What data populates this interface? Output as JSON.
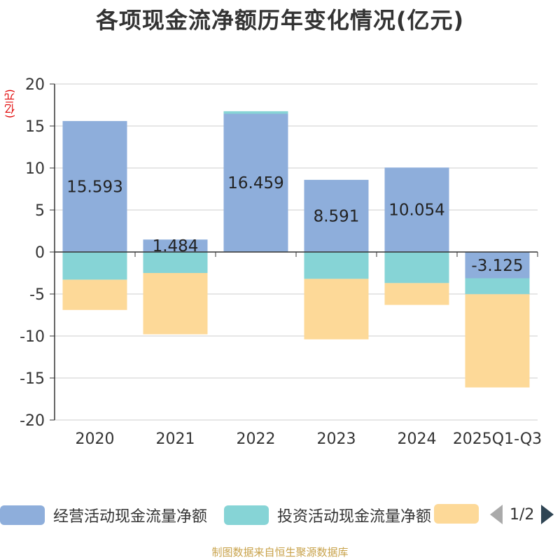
{
  "chart_data": {
    "type": "bar",
    "stacked": true,
    "title": "各项现金流净额历年变化情况(亿元)",
    "ylabel": "(亿元)",
    "ylim": [
      -20,
      20
    ],
    "yticks": [
      20,
      15,
      10,
      5,
      0,
      -5,
      -10,
      -15,
      -20
    ],
    "categories": [
      "2020",
      "2021",
      "2022",
      "2023",
      "2024",
      "2025Q1-Q3"
    ],
    "series": [
      {
        "name": "经营活动现金流量净额",
        "color": "#8eaedb",
        "values": [
          15.593,
          1.484,
          16.459,
          8.591,
          10.054,
          -3.125
        ],
        "labels": [
          "15.593",
          "1.484",
          "16.459",
          "8.591",
          "10.054",
          "-3.125"
        ]
      },
      {
        "name": "投资活动现金流量净额",
        "color": "#86d4d6",
        "values": [
          -3.3,
          -2.5,
          0.3,
          -3.2,
          -3.7,
          -1.9
        ]
      },
      {
        "name": "",
        "color": "#fdd998",
        "values": [
          -3.6,
          -7.3,
          0,
          -7.2,
          -2.6,
          -11.1
        ]
      }
    ],
    "legend_position": "bottom"
  },
  "legend": {
    "items": [
      {
        "label": "经营活动现金流量净额",
        "color": "#8eaedb"
      },
      {
        "label": "投资活动现金流量净额",
        "color": "#86d4d6"
      },
      {
        "label": "",
        "color": "#fdd998"
      }
    ],
    "page_text": "1/2"
  },
  "source": "制图数据来自恒生聚源数据库"
}
